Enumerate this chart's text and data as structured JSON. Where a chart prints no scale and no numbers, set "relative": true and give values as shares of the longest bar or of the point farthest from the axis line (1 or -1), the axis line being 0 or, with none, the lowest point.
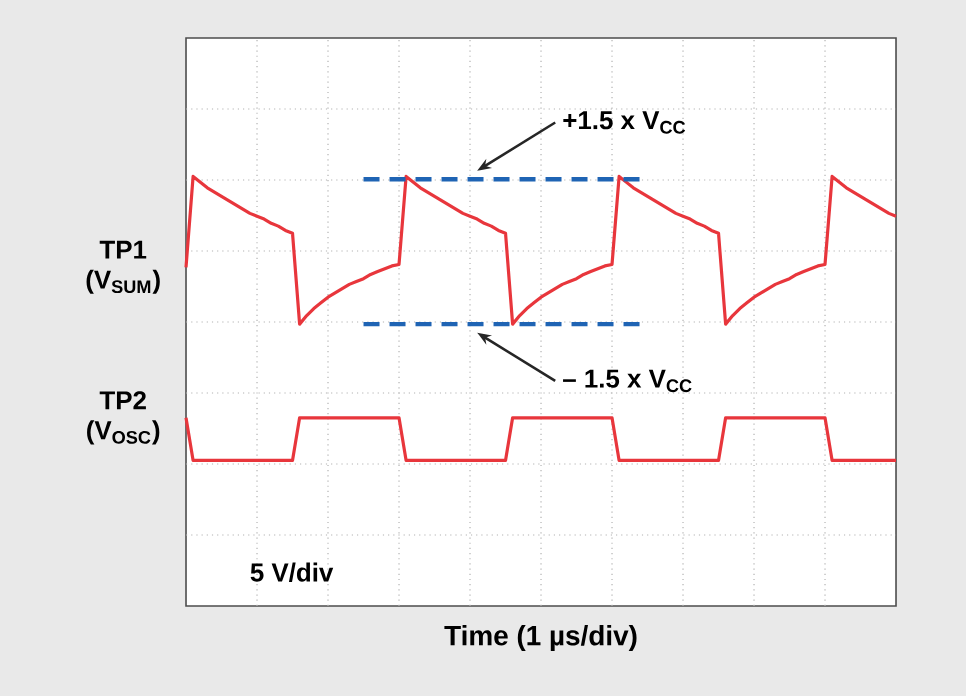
{
  "chart_data": {
    "type": "line",
    "relative": true,
    "grid": true,
    "marker": "none",
    "line_style": "solid",
    "categories": [
      null,
      null,
      null,
      null,
      null,
      null,
      null,
      null,
      null,
      null,
      null,
      null,
      null,
      null,
      null,
      null,
      null,
      null,
      null,
      null,
      null,
      null,
      null,
      null,
      null,
      null,
      null,
      null,
      null,
      null,
      null,
      null,
      null,
      null,
      null,
      null,
      null,
      null,
      null,
      null,
      null,
      null,
      null,
      null,
      null,
      null,
      null,
      null,
      null,
      null,
      null,
      null,
      null,
      null,
      null,
      null,
      null,
      null,
      null,
      null,
      null,
      null,
      null,
      null,
      null,
      null,
      null,
      null,
      null,
      null,
      null,
      null,
      null,
      null,
      null,
      null,
      null,
      null,
      null,
      null,
      null,
      null,
      null,
      null,
      null,
      null,
      null,
      null,
      null,
      null,
      null,
      null,
      null,
      null,
      null,
      null,
      null,
      null,
      null,
      null,
      null
    ],
    "series": [
      {
        "name": "TP1 (V$_{SUM}$)",
        "color": "#e8363c",
        "values": [
          0.68,
          1,
          0.98,
          0.96,
          0.945,
          0.93,
          0.915,
          0.9,
          0.885,
          0.87,
          0.86,
          0.85,
          0.835,
          0.825,
          0.81,
          0.8,
          0.48,
          0.51,
          0.535,
          0.555,
          0.575,
          0.59,
          0.605,
          0.62,
          0.63,
          0.64,
          0.655,
          0.665,
          0.675,
          0.685,
          0.69,
          1,
          0.98,
          0.96,
          0.945,
          0.93,
          0.915,
          0.9,
          0.885,
          0.87,
          0.86,
          0.85,
          0.835,
          0.825,
          0.81,
          0.8,
          0.48,
          0.51,
          0.535,
          0.555,
          0.575,
          0.59,
          0.605,
          0.62,
          0.63,
          0.64,
          0.655,
          0.665,
          0.675,
          0.685,
          0.69,
          1,
          0.98,
          0.96,
          0.945,
          0.93,
          0.915,
          0.9,
          0.885,
          0.87,
          0.86,
          0.85,
          0.835,
          0.825,
          0.81,
          0.8,
          0.48,
          0.51,
          0.535,
          0.555,
          0.575,
          0.59,
          0.605,
          0.62,
          0.63,
          0.64,
          0.655,
          0.665,
          0.675,
          0.685,
          0.69,
          1,
          0.98,
          0.96,
          0.945,
          0.93,
          0.915,
          0.9,
          0.885,
          0.87,
          0.86
        ]
      },
      {
        "name": "TP2 (V$_{OSC}$)",
        "color": "#e8363c",
        "values": [
          0.15,
          0,
          0,
          0,
          0,
          0,
          0,
          0,
          0,
          0,
          0,
          0,
          0,
          0,
          0,
          0,
          0.15,
          0.15,
          0.15,
          0.15,
          0.15,
          0.15,
          0.15,
          0.15,
          0.15,
          0.15,
          0.15,
          0.15,
          0.15,
          0.15,
          0.15,
          0,
          0,
          0,
          0,
          0,
          0,
          0,
          0,
          0,
          0,
          0,
          0,
          0,
          0,
          0,
          0.15,
          0.15,
          0.15,
          0.15,
          0.15,
          0.15,
          0.15,
          0.15,
          0.15,
          0.15,
          0.15,
          0.15,
          0.15,
          0.15,
          0.15,
          0,
          0,
          0,
          0,
          0,
          0,
          0,
          0,
          0,
          0,
          0,
          0,
          0,
          0,
          0,
          0.15,
          0.15,
          0.15,
          0.15,
          0.15,
          0.15,
          0.15,
          0.15,
          0.15,
          0.15,
          0.15,
          0.15,
          0.15,
          0.15,
          0.15,
          0,
          0,
          0,
          0,
          0,
          0,
          0,
          0,
          0,
          0
        ]
      },
      {
        "color": "#1f64b4",
        "line_style": "dashed",
        "values": [
          null,
          null,
          null,
          null,
          null,
          null,
          null,
          null,
          null,
          null,
          null,
          null,
          null,
          null,
          null,
          null,
          null,
          null,
          null,
          null,
          null,
          null,
          null,
          null,
          null,
          0.99,
          0.99,
          0.99,
          0.99,
          0.99,
          0.99,
          0.99,
          0.99,
          0.99,
          0.99,
          0.99,
          0.99,
          0.99,
          0.99,
          0.99,
          0.99,
          0.99,
          0.99,
          0.99,
          0.99,
          0.99,
          0.99,
          0.99,
          0.99,
          0.99,
          0.99,
          0.99,
          0.99,
          0.99,
          0.99,
          0.99,
          0.99,
          0.99,
          0.99,
          0.99,
          0.99,
          0.99,
          0.99,
          0.99,
          0.99,
          null,
          null,
          null,
          null,
          null,
          null,
          null,
          null,
          null,
          null,
          null,
          null,
          null,
          null,
          null,
          null,
          null,
          null,
          null,
          null,
          null,
          null,
          null,
          null,
          null,
          null,
          null,
          null,
          null,
          null,
          null,
          null,
          null,
          null,
          null,
          null
        ]
      },
      {
        "color": "#1f64b4",
        "line_style": "dashed",
        "values": [
          null,
          null,
          null,
          null,
          null,
          null,
          null,
          null,
          null,
          null,
          null,
          null,
          null,
          null,
          null,
          null,
          null,
          null,
          null,
          null,
          null,
          null,
          null,
          null,
          null,
          0.48,
          0.48,
          0.48,
          0.48,
          0.48,
          0.48,
          0.48,
          0.48,
          0.48,
          0.48,
          0.48,
          0.48,
          0.48,
          0.48,
          0.48,
          0.48,
          0.48,
          0.48,
          0.48,
          0.48,
          0.48,
          0.48,
          0.48,
          0.48,
          0.48,
          0.48,
          0.48,
          0.48,
          0.48,
          0.48,
          0.48,
          0.48,
          0.48,
          0.48,
          0.48,
          0.48,
          0.48,
          0.48,
          0.48,
          0.48,
          null,
          null,
          null,
          null,
          null,
          null,
          null,
          null,
          null,
          null,
          null,
          null,
          null,
          null,
          null,
          null,
          null,
          null,
          null,
          null,
          null,
          null,
          null,
          null,
          null,
          null,
          null,
          null,
          null,
          null,
          null,
          null,
          null,
          null,
          null,
          null
        ]
      }
    ],
    "annotations": [
      "+1.5 x V$_{CC}$",
      "– 1.5 x V$_{CC}$",
      "5 V/div",
      "Time (1 µs/div)"
    ]
  }
}
